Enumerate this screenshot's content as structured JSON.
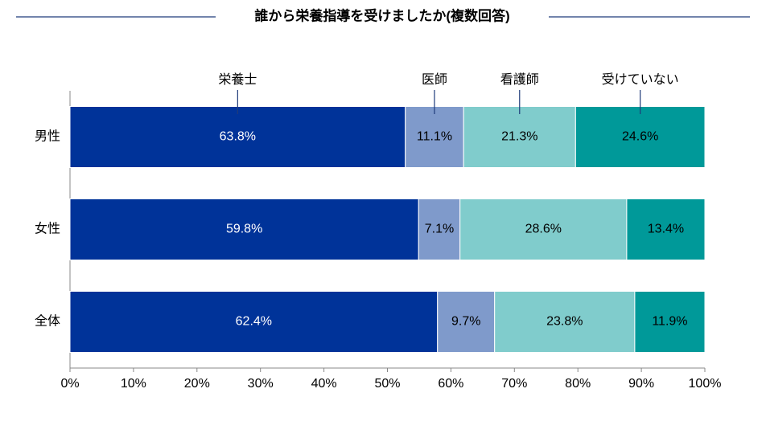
{
  "chart_data": {
    "type": "bar",
    "orientation": "horizontal",
    "stacking": "percent",
    "title": "誰から栄養指導を受けましたか(複数回答)",
    "categories": [
      "男性",
      "女性",
      "全体"
    ],
    "series": [
      {
        "name": "栄養士",
        "color": "#003399",
        "values": [
          63.8,
          59.8,
          62.4
        ],
        "value_labels": [
          "63.8%",
          "59.8%",
          "62.4%"
        ]
      },
      {
        "name": "医師",
        "color": "#7f9acb",
        "values": [
          11.1,
          7.1,
          9.7
        ],
        "value_labels": [
          "11.1%",
          "7.1%",
          "9.7%"
        ]
      },
      {
        "name": "看護師",
        "color": "#80cccc",
        "values": [
          21.3,
          28.6,
          23.8
        ],
        "value_labels": [
          "21.3%",
          "28.6%",
          "23.8%"
        ]
      },
      {
        "name": "受けていない",
        "color": "#009999",
        "values": [
          24.6,
          13.4,
          11.9
        ],
        "value_labels": [
          "24.6%",
          "13.4%",
          "11.9%"
        ]
      }
    ],
    "xlim": [
      0,
      100
    ],
    "xticks": [
      {
        "value": 0,
        "label": "0%"
      },
      {
        "value": 10,
        "label": "10%"
      },
      {
        "value": 20,
        "label": "20%"
      },
      {
        "value": 30,
        "label": "30%"
      },
      {
        "value": 40,
        "label": "40%"
      },
      {
        "value": 50,
        "label": "50%"
      },
      {
        "value": 60,
        "label": "60%"
      },
      {
        "value": 70,
        "label": "70%"
      },
      {
        "value": 80,
        "label": "80%"
      },
      {
        "value": 90,
        "label": "90%"
      },
      {
        "value": 100,
        "label": "100%"
      }
    ],
    "grid": false
  }
}
